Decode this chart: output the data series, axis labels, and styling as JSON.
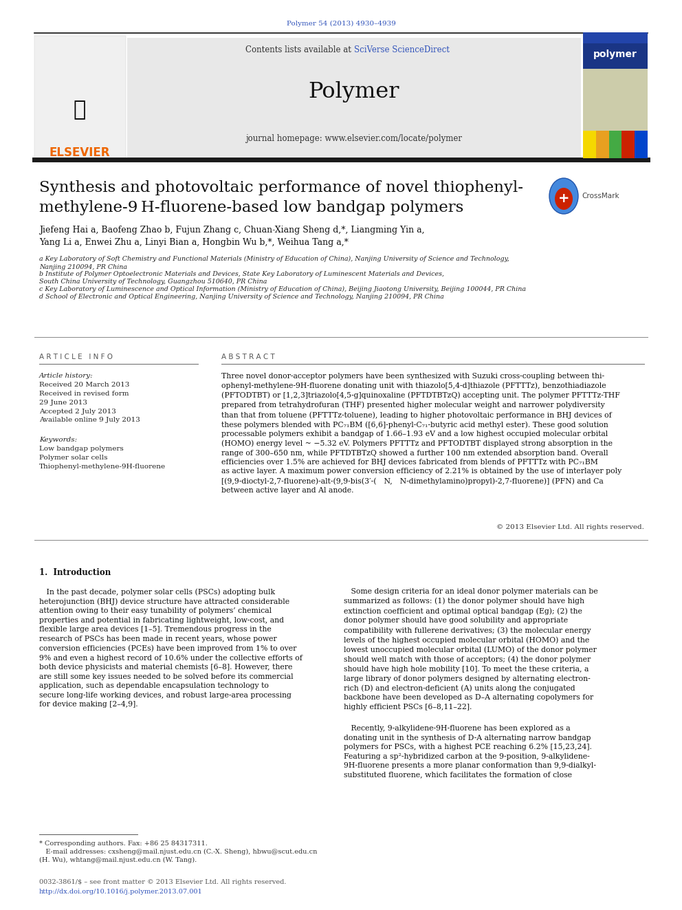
{
  "journal_ref": "Polymer 54 (2013) 4930–4939",
  "journal_ref_color": "#3355bb",
  "contents_line1": "Contents lists available at ",
  "contents_line2": "SciVerse ScienceDirect",
  "sciverse_color": "#3355bb",
  "journal_name": "Polymer",
  "journal_homepage": "journal homepage: www.elsevier.com/locate/polymer",
  "title_line1": "Synthesis and photovoltaic performance of novel thiophenyl-",
  "title_line2": "methylene-9 H-fluorene-based low bandgap polymers",
  "author_line1": "Jiefeng Hai a, Baofeng Zhao b, Fujun Zhang c, Chuan-Xiang Sheng d,*, Liangming Yin a,",
  "author_line2": "Yang Li a, Enwei Zhu a, Linyi Bian a, Hongbin Wu b,*, Weihua Tang a,*",
  "affil_a": "a Key Laboratory of Soft Chemistry and Functional Materials (Ministry of Education of China), Nanjing University of Science and Technology,\nNanjing 210094, PR China",
  "affil_b": "b Institute of Polymer Optoelectronic Materials and Devices, State Key Laboratory of Luminescent Materials and Devices,\nSouth China University of Technology, Guangzhou 510640, PR China",
  "affil_c": "c Key Laboratory of Luminescence and Optical Information (Ministry of Education of China), Beijing Jiaotong University, Beijing 100044, PR China",
  "affil_d": "d School of Electronic and Optical Engineering, Nanjing University of Science and Technology, Nanjing 210094, PR China",
  "article_info_header": "A R T I C L E   I N F O",
  "abstract_header": "A B S T R A C T",
  "article_history_label": "Article history:",
  "article_history": "Received 20 March 2013\nReceived in revised form\n29 June 2013\nAccepted 2 July 2013\nAvailable online 9 July 2013",
  "keywords_label": "Keywords:",
  "keywords": "Low bandgap polymers\nPolymer solar cells\nThiophenyl-methylene-9H-fluorene",
  "abstract_text1": "Three novel donor-acceptor polymers have been synthesized with Suzuki cross-coupling between thi-\nophenyl-methylene-9H-fluorene donating unit with thiazolo[5,4-d]thiazole (",
  "abstract_bold1": "PFTTTz",
  "abstract_text2": "), benzothiadiazole\n(",
  "abstract_bold2": "PFTODTBT",
  "abstract_text3": ") or [1,2,3]triazolo[4,5-g]quinoxaline (",
  "abstract_bold3": "PFTDTBTzQ",
  "abstract_text4": ") accepting unit. The polymer ",
  "abstract_bold4": "PFTTTz",
  "abstract_text5": "-THF\nprepared from tetrahydrofuran (THF) presented higher molecular weight and narrower polydiversity\nthan that from toluene (",
  "abstract_bold5": "PFTTTz",
  "abstract_text6": "-toluene), leading to higher photovoltaic performance in BHJ devices of\nthese polymers blended with PC₇₁BM ([6,6]-phenyl-C₇₁-butyric acid methyl ester). These good solution\nprocessable polymers exhibit a bandgap of 1.66–1.93 eV and a low highest occupied molecular orbital\n(HOMO) energy level ~ −5.32 eV. Polymers ",
  "abstract_bold6": "PFTTTz",
  "abstract_text7": " and ",
  "abstract_bold7": "PFTODTBT",
  "abstract_text8": " displayed strong absorption in the\nrange of 300–650 nm, while ",
  "abstract_bold8": "PFTDTBTzQ",
  "abstract_text9": " showed a further 100 nm extended absorption band. Overall\nefficiencies over 1.5% are achieved for BHJ devices fabricated from blends of ",
  "abstract_bold9": "PFTTTz",
  "abstract_text10": " with PC₇₁BM\nas active layer. A maximum power conversion efficiency of 2.21% is obtained by the use of interlayer poly\n[(9,9-dioctyl-2,7-fluorene)-alt-(9,9-bis(3′-( N, N-dimethylamino)propyl)-2,7-fluorene)] (PFN) and Ca\nbetween active layer and Al anode.",
  "copyright": "© 2013 Elsevier Ltd. All rights reserved.",
  "intro_header": "1.  Introduction",
  "intro_col1_para1": "   In the past decade, polymer solar cells (PSCs) adopting bulk\nheterojunction (BHJ) device structure have attracted considerable\nattention owing to their easy tunability of polymers’ chemical\nproperties and potential in fabricating lightweight, low-cost, and\nflexible large area devices [1–5]. Tremendous progress in the\nresearch of PSCs has been made in recent years, whose power\nconversion efficiencies (PCEs) have been improved from 1% to over\n9% and even a highest record of 10.6% under the collective efforts of\nboth device physicists and material chemists [6–8]. However, there\nare still some key issues needed to be solved before its commercial\napplication, such as dependable encapsulation technology to\nsecure long-life working devices, and robust large-area processing\nfor device making [2–4,9].",
  "intro_col2_para1": "   Some design criteria for an ideal donor polymer materials can be\nsummarized as follows: (1) the donor polymer should have high\nextinction coefficient and optimal optical bandgap (Eg); (2) the\ndonor polymer should have good solubility and appropriate\ncompatibility with fullerene derivatives; (3) the molecular energy\nlevels of the highest occupied molecular orbital (HOMO) and the\nlowest unoccupied molecular orbital (LUMO) of the donor polymer\nshould well match with those of acceptors; (4) the donor polymer\nshould have high hole mobility [10]. To meet the these criteria, a\nlarge library of donor polymers designed by alternating electron-\nrich (D) and electron-deficient (A) units along the conjugated\nbackbone have been developed as D–A alternating copolymers for\nhighly efficient PSCs [6–8,11–22].",
  "intro_col2_para2": "   Recently, 9-alkylidene-9H-fluorene has been explored as a\ndonating unit in the synthesis of D-A alternating narrow bandgap\npolymers for PSCs, with a highest PCE reaching 6.2% [15,23,24].\nFeaturing a sp²-hybridized carbon at the 9-position, 9-alkylidene-\n9H-fluorene presents a more planar conformation than 9,9-dialkyl-\nsubstituted fluorene, which facilitates the formation of close",
  "footnote_line": "* Corresponding authors. Fax: +86 25 84317311.",
  "footnote_email": "   E-mail addresses: cxsheng@mail.njust.edu.cn (C.-X. Sheng), hbwu@scut.edu.cn\n(H. Wu), whtang@mail.njust.edu.cn (W. Tang).",
  "footer_issn": "0032-3861/$ – see front matter © 2013 Elsevier Ltd. All rights reserved.",
  "footer_doi": "http://dx.doi.org/10.1016/j.polymer.2013.07.001",
  "bg_color": "#ffffff",
  "header_bg": "#e8e8e8",
  "dark_line_color": "#111111",
  "gray_line_color": "#aaaaaa",
  "text_color": "#111111",
  "link_color": "#3355bb",
  "elsevier_color": "#ee6600"
}
